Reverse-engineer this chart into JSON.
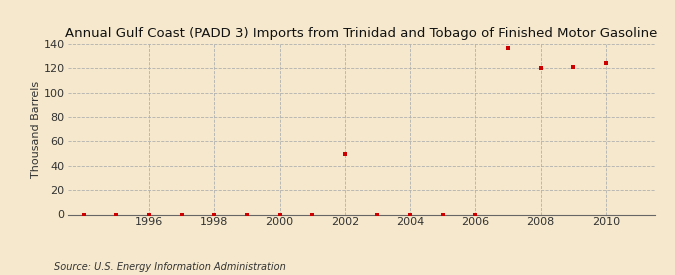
{
  "title": "Annual Gulf Coast (PADD 3) Imports from Trinidad and Tobago of Finished Motor Gasoline",
  "ylabel": "Thousand Barrels",
  "source": "Source: U.S. Energy Information Administration",
  "background_color": "#f5e8cc",
  "plot_background_color": "#f5e8cc",
  "marker_color": "#cc0000",
  "grid_color": "#b0b0b0",
  "years": [
    1994,
    1995,
    1996,
    1997,
    1998,
    1999,
    2000,
    2001,
    2002,
    2003,
    2004,
    2005,
    2006,
    2007,
    2008,
    2009,
    2010
  ],
  "values": [
    0,
    0,
    0,
    0,
    0,
    0,
    0,
    0,
    50,
    0,
    0,
    0,
    0,
    137,
    120,
    121,
    124
  ],
  "xlim": [
    1993.5,
    2011.5
  ],
  "ylim": [
    0,
    140
  ],
  "yticks": [
    0,
    20,
    40,
    60,
    80,
    100,
    120,
    140
  ],
  "xticks": [
    1996,
    1998,
    2000,
    2002,
    2004,
    2006,
    2008,
    2010
  ],
  "title_fontsize": 9.5,
  "label_fontsize": 8,
  "tick_fontsize": 8,
  "source_fontsize": 7
}
